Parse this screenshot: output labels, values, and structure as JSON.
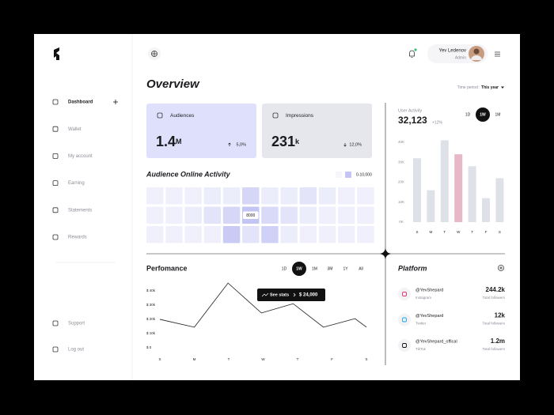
{
  "sidebar": {
    "nav": [
      "Dashboard",
      "Wallet",
      "My account",
      "Earning",
      "Statements",
      "Rewards"
    ],
    "footer": [
      "Support",
      "Log out"
    ]
  },
  "header": {
    "user_name": "Yev Ledenov",
    "user_role": "Admin"
  },
  "title": "Overview",
  "time_period": {
    "label": "Time period :",
    "value": "This year"
  },
  "cards": [
    {
      "label": "Audiences",
      "value": "1.4",
      "unit": "M",
      "change": "5,0%",
      "color": "#dfe0fc"
    },
    {
      "label": "Impressions",
      "value": "231",
      "unit": "k",
      "change": "12,0%",
      "color": "#e5e7ec"
    }
  ],
  "activity": {
    "title": "Audience Online Activity",
    "legend": "0-10,000",
    "low_color": "#f6f6fd",
    "high_color": "#c3c5f4",
    "values": [
      [
        1000,
        1000,
        1000,
        1500,
        1500,
        5000,
        1500,
        1500,
        3000,
        1500,
        1000,
        1000
      ],
      [
        1000,
        1000,
        1500,
        3000,
        5000,
        8000,
        4500,
        3000,
        1500,
        1000,
        1000,
        1000
      ],
      [
        1000,
        1000,
        1000,
        1000,
        7000,
        3000,
        6000,
        1500,
        1000,
        1000,
        1000,
        1000
      ]
    ]
  },
  "user_activity": {
    "label": "User Activity",
    "total": "32,123",
    "change": "+12%",
    "periods": [
      "1D",
      "1W",
      "1M"
    ],
    "active_period": 1
  },
  "performance": {
    "periods": [
      "1D",
      "1W",
      "1M",
      "3M",
      "1Y",
      "All"
    ],
    "active_period": 1,
    "tooltip": {
      "action": "See stats",
      "value": "$ 24,000"
    }
  },
  "chart_data": [
    {
      "type": "bar",
      "categories": [
        "S",
        "M",
        "T",
        "W",
        "T",
        "F",
        "S"
      ],
      "values": [
        32000,
        16000,
        41000,
        34000,
        28000,
        12000,
        22000
      ],
      "colors": [
        "#dfe1e8",
        "#dfe1e8",
        "#dfe1e8",
        "#e8b8c8",
        "#dfe1e8",
        "#dfe1e8",
        "#dfe1e8"
      ],
      "ylim": [
        0,
        40000
      ],
      "yticks": [
        {
          "value": 0,
          "label": "0K"
        },
        {
          "value": 10000,
          "label": "10K"
        },
        {
          "value": 20000,
          "label": "20K"
        },
        {
          "value": 30000,
          "label": "30K"
        },
        {
          "value": 40000,
          "label": "40K"
        }
      ]
    },
    {
      "type": "line",
      "title": "Perfomance",
      "color": "#333333",
      "x": [
        0,
        1.0,
        1.98,
        2.95,
        3.87,
        4.75,
        5.67,
        6.0
      ],
      "values": [
        20000,
        14500,
        45500,
        24500,
        31000,
        14500,
        20500,
        14500
      ],
      "xlim": [
        0,
        6
      ],
      "xticks": [
        {
          "value": 0,
          "label": "S"
        },
        {
          "value": 1,
          "label": "M"
        },
        {
          "value": 2,
          "label": "T"
        },
        {
          "value": 3,
          "label": "W"
        },
        {
          "value": 4,
          "label": "T"
        },
        {
          "value": 5,
          "label": "F"
        },
        {
          "value": 6,
          "label": "S"
        }
      ],
      "ylim": [
        0,
        40000
      ],
      "yticks": [
        {
          "value": 0,
          "label": "$ 0"
        },
        {
          "value": 10000,
          "label": "$ 10k"
        },
        {
          "value": 20000,
          "label": "$ 20k"
        },
        {
          "value": 30000,
          "label": "$ 30k"
        },
        {
          "value": 40000,
          "label": "$ 40k"
        }
      ]
    }
  ],
  "platform": {
    "title": "Platform",
    "items": [
      {
        "handle": "@YevShepard",
        "network": "Instagram",
        "followers": "244.2k",
        "caption": "Total followers"
      },
      {
        "handle": "@YevShepard",
        "network": "Twitter",
        "followers": "12k",
        "caption": "Total followers"
      },
      {
        "handle": "@YevShepard_offical",
        "network": "TikTok",
        "followers": "1.2m",
        "caption": "Total followers"
      }
    ]
  }
}
